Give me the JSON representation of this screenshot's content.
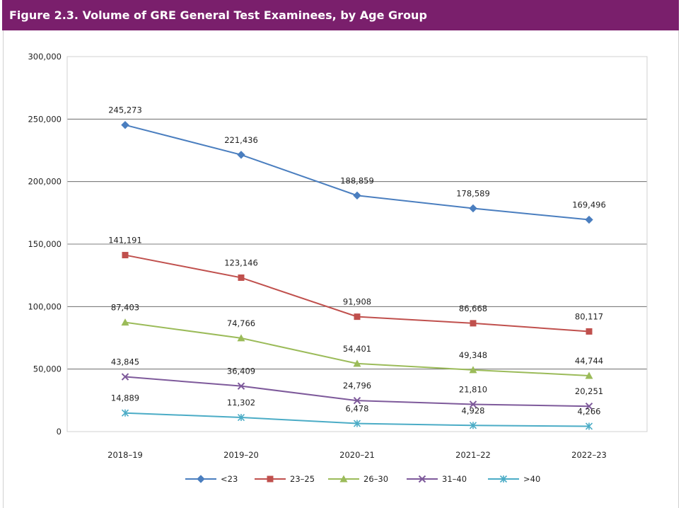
{
  "header": {
    "title": "Figure 2.3. Volume of GRE General Test Examinees, by Age Group"
  },
  "chart_data": {
    "type": "line",
    "title": "Figure 2.3. Volume of GRE General Test Examinees, by Age Group",
    "categories": [
      "2018–19",
      "2019–20",
      "2020–21",
      "2021–22",
      "2022–23"
    ],
    "ylim": [
      0,
      300000
    ],
    "yticks": [
      0,
      50000,
      100000,
      150000,
      200000,
      250000,
      300000
    ],
    "ytick_labels": [
      "0",
      "50,000",
      "100,000",
      "150,000",
      "200,000",
      "250,000",
      "300,000"
    ],
    "grid": true,
    "legend_position": "bottom",
    "series": [
      {
        "name": "<23",
        "color": "#4a7ebf",
        "marker": "diamond",
        "values": [
          245273,
          221436,
          188859,
          178589,
          169496
        ],
        "labels": [
          "245,273",
          "221,436",
          "188,859",
          "178,589",
          "169,496"
        ]
      },
      {
        "name": "23–25",
        "color": "#c0504d",
        "marker": "square",
        "values": [
          141191,
          123146,
          91908,
          86668,
          80117
        ],
        "labels": [
          "141,191",
          "123,146",
          "91,908",
          "86,668",
          "80,117"
        ]
      },
      {
        "name": "26–30",
        "color": "#9bbb59",
        "marker": "triangle",
        "values": [
          87403,
          74766,
          54401,
          49348,
          44744
        ],
        "labels": [
          "87,403",
          "74,766",
          "54,401",
          "49,348",
          "44,744"
        ]
      },
      {
        "name": "31–40",
        "color": "#7e5a9b",
        "marker": "x",
        "values": [
          43845,
          36409,
          24796,
          21810,
          20251
        ],
        "labels": [
          "43,845",
          "36,409",
          "24,796",
          "21,810",
          "20,251"
        ]
      },
      {
        "name": ">40",
        "color": "#4bacc6",
        "marker": "star",
        "values": [
          14889,
          11302,
          6478,
          4928,
          4266
        ],
        "labels": [
          "14,889",
          "11,302",
          "6,478",
          "4,928",
          "4,266"
        ]
      }
    ]
  }
}
